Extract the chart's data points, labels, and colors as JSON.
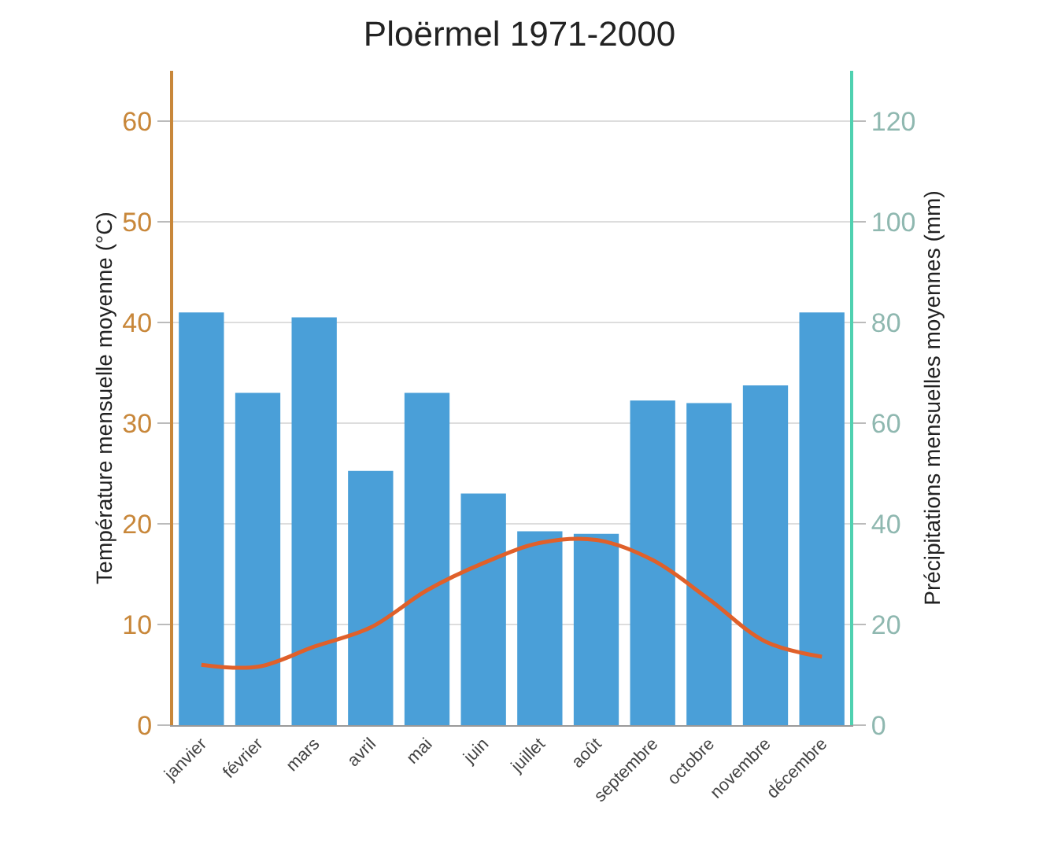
{
  "chart_data": {
    "type": "bar",
    "title": "Ploërmel 1971-2000",
    "ylabel": "Température mensuelle moyenne (°C)",
    "y2label": "Précipitations mensuelles moyennes (mm)",
    "categories": [
      "janvier",
      "février",
      "mars",
      "avril",
      "mai",
      "juin",
      "juillet",
      "août",
      "septembre",
      "octobre",
      "novembre",
      "décembre"
    ],
    "series": [
      {
        "axis": "y2",
        "color": "#4a9fd8",
        "values": [
          82,
          66,
          81,
          50.5,
          66,
          46,
          38.5,
          38,
          64.5,
          64,
          67.5,
          82
        ]
      },
      {
        "type": "line",
        "axis": "y",
        "color": "#e0602a",
        "values": [
          6,
          5.8,
          7.8,
          9.7,
          13.4,
          16.1,
          18.1,
          18.4,
          16.4,
          12.5,
          8.3,
          6.8
        ]
      }
    ],
    "ylim": [
      0,
      65
    ],
    "yticks": [
      0,
      10,
      20,
      30,
      40,
      50,
      60
    ],
    "y2lim": [
      0,
      130
    ],
    "y2ticks": [
      0,
      20,
      40,
      60,
      80,
      100,
      120
    ],
    "grid": "y",
    "marker": "none",
    "line_style": "solid"
  }
}
